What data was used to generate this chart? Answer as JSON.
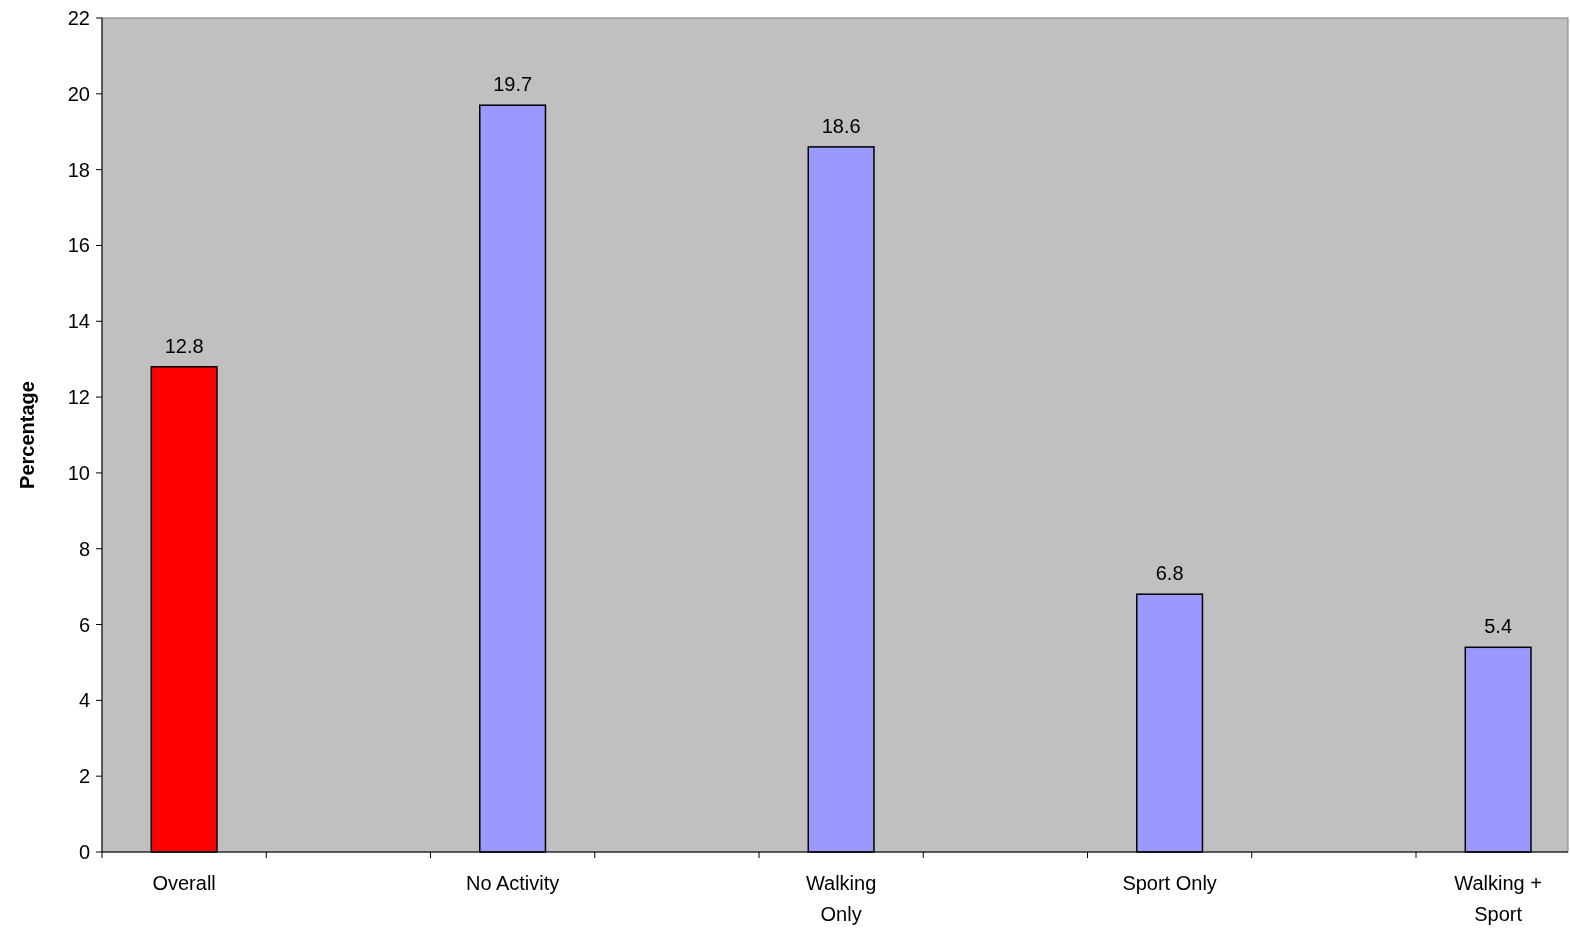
{
  "chart_data": {
    "type": "bar",
    "ylabel": "Percentage",
    "categories": [
      "Overall",
      "No Activity",
      "Walking Only",
      "Sport Only",
      "Walking + Sport"
    ],
    "values": [
      12.8,
      19.7,
      18.6,
      6.8,
      5.4
    ],
    "colors": [
      "#ff0000",
      "#9999ff",
      "#9999ff",
      "#9999ff",
      "#9999ff"
    ],
    "ylim": [
      0,
      22
    ],
    "yticks": [
      0,
      2,
      4,
      6,
      8,
      10,
      12,
      14,
      16,
      18,
      20,
      22
    ],
    "data_labels": true,
    "grid": false
  }
}
